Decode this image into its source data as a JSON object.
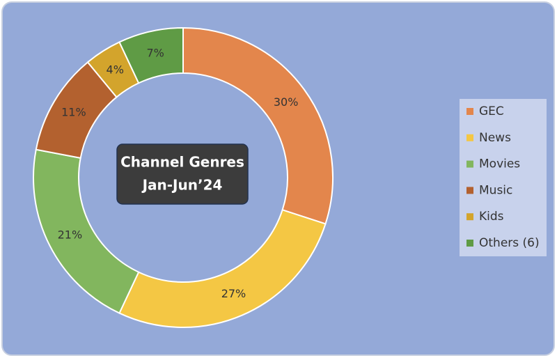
{
  "chart_data": {
    "type": "pie",
    "donut": true,
    "title": "Channel Genres",
    "subtitle": "Jan-Jun’24",
    "categories": [
      "GEC",
      "News",
      "Movies",
      "Music",
      "Kids",
      "Others (6)"
    ],
    "values": [
      30,
      27,
      21,
      11,
      4,
      7
    ],
    "value_labels": [
      "30%",
      "27%",
      "21%",
      "11%",
      "4%",
      "7%"
    ],
    "colors": [
      "#e3864c",
      "#f4c744",
      "#82b65e",
      "#b3612f",
      "#d3a42c",
      "#5f9b45"
    ],
    "legend": "right"
  }
}
